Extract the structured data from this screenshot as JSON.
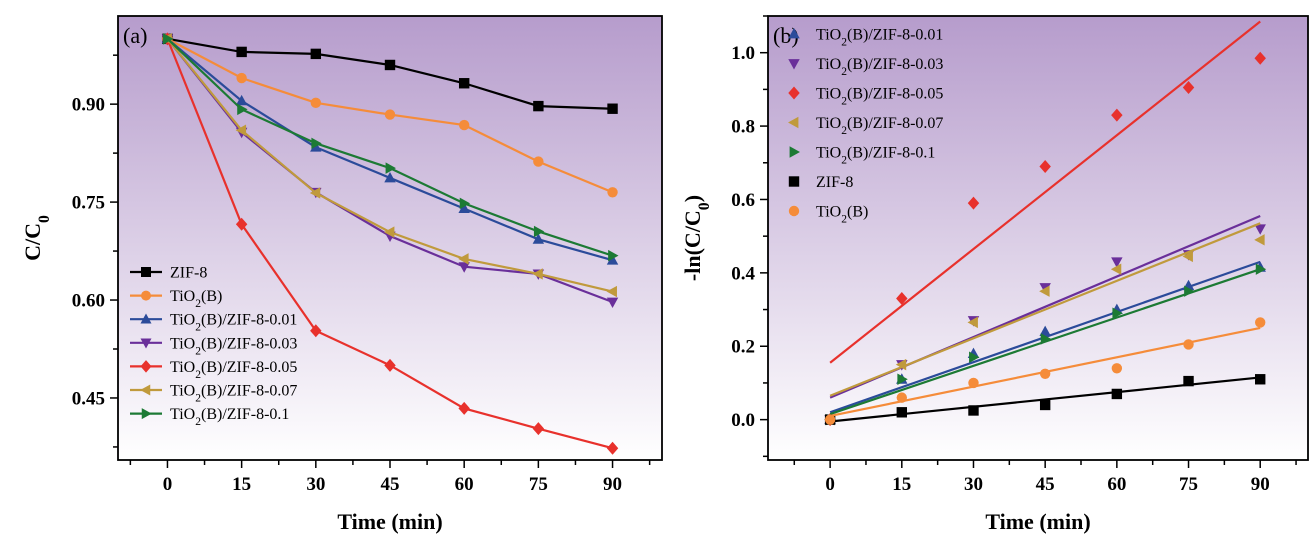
{
  "chart_data": [
    {
      "panel_label": "(a)",
      "type": "line",
      "xlabel": "Time (min)",
      "ylabel": "C/C",
      "ylabel_sub": "0",
      "xlim": [
        -10,
        100
      ],
      "ylim": [
        0.355,
        1.035
      ],
      "xticks": [
        0,
        15,
        30,
        45,
        60,
        75,
        90
      ],
      "yticks": [
        0.45,
        0.6,
        0.75,
        0.9
      ],
      "ytick_labels": [
        "0.45",
        "0.60",
        "0.75",
        "0.90"
      ],
      "legend_position": "bottom-left",
      "background_gradient": [
        "#b69ccc",
        "#ffffff"
      ],
      "x": [
        0,
        15,
        30,
        45,
        60,
        75,
        90
      ],
      "series": [
        {
          "name": "ZIF-8",
          "main": "ZIF-8",
          "marker": "square",
          "color": "#000000",
          "values": [
            1.0,
            0.98,
            0.977,
            0.96,
            0.932,
            0.897,
            0.893
          ]
        },
        {
          "name": "TiO2(B)",
          "main": "TiO",
          "sub": "2",
          "rest": "(B)",
          "marker": "circle",
          "color": "#f58c3a",
          "values": [
            1.0,
            0.94,
            0.902,
            0.884,
            0.868,
            0.812,
            0.765
          ]
        },
        {
          "name": "TiO2(B)/ZIF-8-0.01",
          "main": "TiO",
          "sub": "2",
          "rest": "(B)/ZIF-8-0.01",
          "marker": "triangle-up",
          "color": "#2b4b9a",
          "values": [
            1.0,
            0.905,
            0.834,
            0.787,
            0.74,
            0.693,
            0.661
          ]
        },
        {
          "name": "TiO2(B)/ZIF-8-0.03",
          "main": "TiO",
          "sub": "2",
          "rest": "(B)/ZIF-8-0.03",
          "marker": "triangle-down",
          "color": "#6a2f9a",
          "values": [
            1.0,
            0.857,
            0.765,
            0.698,
            0.651,
            0.64,
            0.597
          ]
        },
        {
          "name": "TiO2(B)/ZIF-8-0.05",
          "main": "TiO",
          "sub": "2",
          "rest": "(B)/ZIF-8-0.05",
          "marker": "diamond",
          "color": "#e8312c",
          "values": [
            1.0,
            0.716,
            0.553,
            0.5,
            0.434,
            0.403,
            0.373
          ]
        },
        {
          "name": "TiO2(B)/ZIF-8-0.07",
          "main": "TiO",
          "sub": "2",
          "rest": "(B)/ZIF-8-0.07",
          "marker": "triangle-left",
          "color": "#c09a3c",
          "values": [
            1.0,
            0.86,
            0.764,
            0.704,
            0.663,
            0.64,
            0.613
          ]
        },
        {
          "name": "TiO2(B)/ZIF-8-0.1",
          "main": "TiO",
          "sub": "2",
          "rest": "(B)/ZIF-8-0.1",
          "marker": "triangle-right",
          "color": "#1c7a34",
          "values": [
            1.0,
            0.892,
            0.84,
            0.802,
            0.748,
            0.705,
            0.668
          ]
        }
      ]
    },
    {
      "panel_label": "(b)",
      "type": "scatter",
      "xlabel": "Time (min)",
      "ylabel": "-ln(C/C",
      "ylabel_sub": "0",
      "ylabel_end": ")",
      "xlim": [
        -13,
        100
      ],
      "ylim": [
        -0.11,
        1.1
      ],
      "xticks": [
        0,
        15,
        30,
        45,
        60,
        75,
        90
      ],
      "yticks": [
        0.0,
        0.2,
        0.4,
        0.6,
        0.8,
        1.0
      ],
      "ytick_labels": [
        "0.0",
        "0.2",
        "0.4",
        "0.6",
        "0.8",
        "1.0"
      ],
      "legend_position": "top-left",
      "background_gradient": [
        "#b69ccc",
        "#ffffff"
      ],
      "x": [
        0,
        15,
        30,
        45,
        60,
        75,
        90
      ],
      "series": [
        {
          "name": "TiO2(B)/ZIF-8-0.01",
          "main": "TiO",
          "sub": "2",
          "rest": "(B)/ZIF-8-0.01",
          "marker": "triangle-up",
          "color": "#2b4b9a",
          "values": [
            0.0,
            0.11,
            0.18,
            0.24,
            0.3,
            0.365,
            0.415
          ],
          "fit": [
            0.02,
            0.43
          ]
        },
        {
          "name": "TiO2(B)/ZIF-8-0.03",
          "main": "TiO",
          "sub": "2",
          "rest": "(B)/ZIF-8-0.03",
          "marker": "triangle-down",
          "color": "#6a2f9a",
          "values": [
            0.0,
            0.15,
            0.27,
            0.36,
            0.43,
            0.45,
            0.52
          ],
          "fit": [
            0.06,
            0.555
          ]
        },
        {
          "name": "TiO2(B)/ZIF-8-0.05",
          "main": "TiO",
          "sub": "2",
          "rest": "(B)/ZIF-8-0.05",
          "marker": "diamond",
          "color": "#e8312c",
          "values": [
            0.0,
            0.33,
            0.59,
            0.69,
            0.83,
            0.905,
            0.985
          ],
          "fit": [
            0.155,
            1.085
          ]
        },
        {
          "name": "TiO2(B)/ZIF-8-0.07",
          "main": "TiO",
          "sub": "2",
          "rest": "(B)/ZIF-8-0.07",
          "marker": "triangle-left",
          "color": "#c09a3c",
          "values": [
            0.0,
            0.15,
            0.265,
            0.35,
            0.41,
            0.445,
            0.49
          ],
          "fit": [
            0.065,
            0.535
          ]
        },
        {
          "name": "TiO2(B)/ZIF-8-0.1",
          "main": "TiO",
          "sub": "2",
          "rest": "(B)/ZIF-8-0.1",
          "marker": "triangle-right",
          "color": "#1c7a34",
          "values": [
            0.0,
            0.11,
            0.17,
            0.22,
            0.29,
            0.35,
            0.41
          ],
          "fit": [
            0.015,
            0.41
          ]
        },
        {
          "name": "ZIF-8",
          "main": "ZIF-8",
          "marker": "square",
          "color": "#000000",
          "values": [
            0.0,
            0.02,
            0.025,
            0.04,
            0.07,
            0.105,
            0.11
          ],
          "fit": [
            -0.005,
            0.115
          ]
        },
        {
          "name": "TiO2(B)",
          "main": "TiO",
          "sub": "2",
          "rest": "(B)",
          "marker": "circle",
          "color": "#f58c3a",
          "values": [
            0.0,
            0.06,
            0.1,
            0.125,
            0.14,
            0.205,
            0.265
          ],
          "fit": [
            0.01,
            0.25
          ]
        }
      ]
    }
  ]
}
